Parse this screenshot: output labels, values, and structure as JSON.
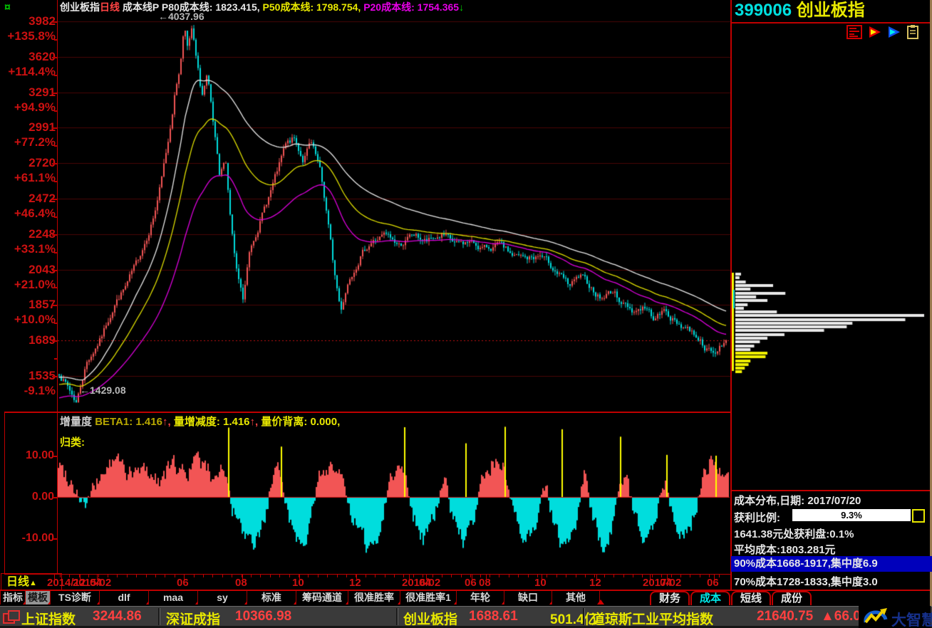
{
  "header": {
    "window_icon": "¤",
    "symbol": "创业板指",
    "period": "日线",
    "indicator": "成本线P",
    "p80_label": "P80成本线:",
    "p80_value": "1823.415,",
    "p50_label": "P50成本线:",
    "p50_value": "1798.754,",
    "p20_label": "P20成本线:",
    "p20_value": "1754.365",
    "p20_arrow": "↓"
  },
  "right_panel": {
    "code": "399006",
    "name": "创业板指",
    "icons": [
      "f10-report-icon",
      "red-flag-icon",
      "blue-flag-icon",
      "clipboard-icon"
    ],
    "cost_info": {
      "title": "成本分布,日期: 2017/07/20",
      "profit_label": "获利比例:",
      "profit_value": "9.3%",
      "line_price": "1641.38元处获利盘:0.1%",
      "line_avg": "平均成本:1803.281元",
      "line_90": "90%成本1668-1917,集中度6.9",
      "line_70": "70%成本1728-1833,集中度3.0"
    }
  },
  "subchart": {
    "title": "增量度",
    "beta_label": "BETA1:",
    "beta_value": "1.416",
    "beta_arrow": "↑,",
    "vol_label": "量增减度:",
    "vol_value": "1.416",
    "vol_arrow": "↑,",
    "dev_label": "量价背离:",
    "dev_value": "0.000,",
    "category": "归类:",
    "axis_labels": [
      "10.00",
      "0.00",
      "-10.00"
    ]
  },
  "timeline": {
    "period": "日线",
    "period_arrow": "▲",
    "labels": [
      [
        66,
        "2014/12"
      ],
      [
        102,
        "2015/02"
      ],
      [
        126,
        "04"
      ],
      [
        248,
        "06"
      ],
      [
        330,
        "08"
      ],
      [
        410,
        "10"
      ],
      [
        490,
        "12"
      ],
      [
        564,
        "2016/02"
      ],
      [
        588,
        "04"
      ],
      [
        652,
        "06"
      ],
      [
        672,
        "08"
      ],
      [
        750,
        "10"
      ],
      [
        827,
        "12"
      ],
      [
        902,
        "2017/02"
      ],
      [
        926,
        "04"
      ],
      [
        992,
        "06"
      ]
    ]
  },
  "tabs": {
    "left": [
      {
        "label": "指标",
        "active": false
      },
      {
        "label": "模板",
        "active": true
      },
      {
        "label": "TS诊断",
        "active": false
      },
      {
        "label": "dlf",
        "active": false
      },
      {
        "label": "maa",
        "active": false
      },
      {
        "label": "sy",
        "active": false
      },
      {
        "label": "标准",
        "active": false
      },
      {
        "label": "筹码通道",
        "active": false
      },
      {
        "label": "很准胜率",
        "active": false
      },
      {
        "label": "很准胜率1",
        "active": false
      },
      {
        "label": "年轮",
        "active": false
      },
      {
        "label": "缺口",
        "active": false
      },
      {
        "label": "其他",
        "active": false
      }
    ],
    "right": [
      {
        "label": "财务",
        "active": false
      },
      {
        "label": "成本",
        "active": true
      },
      {
        "label": "短线",
        "active": false
      },
      {
        "label": "成份",
        "active": false
      }
    ]
  },
  "status_bar": {
    "items": [
      {
        "label": "上证指数",
        "value": "3244.86"
      },
      {
        "label": "深证成指",
        "value": "10366.98"
      },
      {
        "label": "创业板指",
        "value": "1688.61",
        "extra": "501.4亿"
      },
      {
        "label": "道琼斯工业平均指数",
        "value": "21640.75",
        "change": "▲66.0"
      }
    ],
    "logo_text": "大智慧"
  },
  "chart_data": {
    "type": "candlestick",
    "title": "创业板指 日线 成本线P",
    "main": {
      "yscale": "log",
      "ylim": [
        1429,
        4038
      ],
      "levels": [
        [
          3982,
          "+135.8%"
        ],
        [
          3620,
          "+114.4%"
        ],
        [
          3291,
          "+94.9%"
        ],
        [
          2991,
          "+77.2%"
        ],
        [
          2720,
          "+61.1%"
        ],
        [
          2472,
          "+46.4%"
        ],
        [
          2248,
          "+33.1%"
        ],
        [
          2043,
          "+21.0%"
        ],
        [
          1857,
          "+10.0%"
        ],
        [
          1689,
          ""
        ],
        [
          1535,
          "-9.1%"
        ]
      ],
      "ref_price": 1689,
      "high_annotation": "←4037.96",
      "low_annotation": "←1429.08",
      "last_close": 1689,
      "cost_lines": {
        "p80": 1823.415,
        "p50": 1798.754,
        "p20": 1754.365
      },
      "n_candles": 313,
      "seed": 7,
      "price_anchors": [
        [
          0,
          1550
        ],
        [
          0.015,
          1480
        ],
        [
          0.026,
          1429
        ],
        [
          0.041,
          1590
        ],
        [
          0.063,
          1700
        ],
        [
          0.084,
          1870
        ],
        [
          0.1,
          1950
        ],
        [
          0.116,
          2070
        ],
        [
          0.132,
          2240
        ],
        [
          0.143,
          2380
        ],
        [
          0.153,
          2580
        ],
        [
          0.164,
          2900
        ],
        [
          0.174,
          3300
        ],
        [
          0.182,
          3560
        ],
        [
          0.188,
          3990
        ],
        [
          0.193,
          3700
        ],
        [
          0.199,
          3900
        ],
        [
          0.206,
          3560
        ],
        [
          0.214,
          3250
        ],
        [
          0.222,
          3430
        ],
        [
          0.231,
          3000
        ],
        [
          0.241,
          2580
        ],
        [
          0.249,
          2780
        ],
        [
          0.256,
          2380
        ],
        [
          0.265,
          2040
        ],
        [
          0.276,
          1870
        ],
        [
          0.286,
          2150
        ],
        [
          0.297,
          2280
        ],
        [
          0.313,
          2470
        ],
        [
          0.329,
          2680
        ],
        [
          0.339,
          2840
        ],
        [
          0.352,
          2900
        ],
        [
          0.366,
          2740
        ],
        [
          0.377,
          2870
        ],
        [
          0.39,
          2680
        ],
        [
          0.401,
          2380
        ],
        [
          0.412,
          2040
        ],
        [
          0.422,
          1830
        ],
        [
          0.435,
          2000
        ],
        [
          0.451,
          2120
        ],
        [
          0.467,
          2200
        ],
        [
          0.489,
          2240
        ],
        [
          0.51,
          2180
        ],
        [
          0.531,
          2240
        ],
        [
          0.552,
          2200
        ],
        [
          0.574,
          2240
        ],
        [
          0.595,
          2180
        ],
        [
          0.616,
          2200
        ],
        [
          0.637,
          2160
        ],
        [
          0.659,
          2180
        ],
        [
          0.68,
          2120
        ],
        [
          0.701,
          2100
        ],
        [
          0.722,
          2120
        ],
        [
          0.744,
          2040
        ],
        [
          0.765,
          1950
        ],
        [
          0.781,
          2000
        ],
        [
          0.797,
          1950
        ],
        [
          0.813,
          1890
        ],
        [
          0.829,
          1930
        ],
        [
          0.845,
          1870
        ],
        [
          0.861,
          1830
        ],
        [
          0.877,
          1850
        ],
        [
          0.893,
          1790
        ],
        [
          0.909,
          1830
        ],
        [
          0.925,
          1770
        ],
        [
          0.941,
          1750
        ],
        [
          0.957,
          1710
        ],
        [
          0.973,
          1645
        ],
        [
          0.984,
          1620
        ],
        [
          0.991,
          1670
        ],
        [
          1,
          1689
        ]
      ]
    },
    "oscillator": {
      "ylim": [
        -16,
        17
      ],
      "axis_ticks": [
        10,
        0,
        -10
      ],
      "anchors": [
        [
          0,
          8
        ],
        [
          0.02,
          4
        ],
        [
          0.04,
          -2
        ],
        [
          0.055,
          2
        ],
        [
          0.07,
          7
        ],
        [
          0.09,
          9
        ],
        [
          0.11,
          5
        ],
        [
          0.13,
          7
        ],
        [
          0.15,
          4
        ],
        [
          0.17,
          8
        ],
        [
          0.19,
          6
        ],
        [
          0.21,
          9
        ],
        [
          0.23,
          5
        ],
        [
          0.245,
          8
        ],
        [
          0.26,
          -3
        ],
        [
          0.275,
          -9
        ],
        [
          0.29,
          -13
        ],
        [
          0.305,
          -7
        ],
        [
          0.32,
          4
        ],
        [
          0.333,
          6
        ],
        [
          0.345,
          -5
        ],
        [
          0.36,
          -11
        ],
        [
          0.375,
          -7
        ],
        [
          0.39,
          5
        ],
        [
          0.405,
          8
        ],
        [
          0.42,
          6
        ],
        [
          0.435,
          -4
        ],
        [
          0.45,
          -9
        ],
        [
          0.465,
          -13
        ],
        [
          0.48,
          -8
        ],
        [
          0.495,
          5
        ],
        [
          0.517,
          8
        ],
        [
          0.53,
          -4
        ],
        [
          0.545,
          -10
        ],
        [
          0.56,
          -6
        ],
        [
          0.575,
          5
        ],
        [
          0.59,
          -5
        ],
        [
          0.605,
          -11
        ],
        [
          0.62,
          -7
        ],
        [
          0.635,
          6
        ],
        [
          0.65,
          9
        ],
        [
          0.665,
          7
        ],
        [
          0.68,
          -5
        ],
        [
          0.695,
          -12
        ],
        [
          0.71,
          -8
        ],
        [
          0.725,
          4
        ],
        [
          0.74,
          -6
        ],
        [
          0.755,
          -13
        ],
        [
          0.77,
          -9
        ],
        [
          0.785,
          5
        ],
        [
          0.8,
          -7
        ],
        [
          0.815,
          -12
        ],
        [
          0.83,
          -6
        ],
        [
          0.845,
          6
        ],
        [
          0.86,
          -4
        ],
        [
          0.875,
          -9
        ],
        [
          0.89,
          -5
        ],
        [
          0.905,
          4
        ],
        [
          0.92,
          -6
        ],
        [
          0.935,
          -10
        ],
        [
          0.95,
          -4
        ],
        [
          0.962,
          6
        ],
        [
          0.975,
          9
        ],
        [
          0.99,
          7
        ],
        [
          1,
          4
        ]
      ],
      "spikes": [
        [
          0.254,
          16.8
        ],
        [
          0.333,
          12.2
        ],
        [
          0.517,
          16.9
        ],
        [
          0.609,
          13
        ],
        [
          0.667,
          17
        ],
        [
          0.752,
          16.4
        ],
        [
          0.839,
          14.6
        ],
        [
          0.908,
          10.2
        ],
        [
          0.982,
          10
        ]
      ]
    },
    "distribution": {
      "bars": [
        [
          383,
          0.03,
          0
        ],
        [
          388,
          0.022,
          0
        ],
        [
          394,
          0.055,
          0
        ],
        [
          399,
          0.2,
          0
        ],
        [
          404,
          0.08,
          0
        ],
        [
          410,
          0.265,
          0
        ],
        [
          415,
          0.11,
          0
        ],
        [
          420,
          0.17,
          0
        ],
        [
          426,
          0.065,
          0
        ],
        [
          431,
          0.045,
          0
        ],
        [
          436,
          0.22,
          0
        ],
        [
          441,
          1.0,
          0
        ],
        [
          447,
          0.9,
          0
        ],
        [
          452,
          0.62,
          0
        ],
        [
          457,
          0.59,
          0
        ],
        [
          462,
          0.47,
          0
        ],
        [
          468,
          0.26,
          0
        ],
        [
          473,
          0.17,
          0
        ],
        [
          478,
          0.13,
          0
        ],
        [
          484,
          0.1,
          0
        ],
        [
          489,
          0.08,
          0
        ],
        [
          494,
          0.17,
          1
        ],
        [
          499,
          0.16,
          1
        ],
        [
          505,
          0.08,
          1
        ],
        [
          510,
          0.07,
          1
        ],
        [
          515,
          0.05,
          1
        ],
        [
          520,
          0.035,
          1
        ]
      ]
    }
  },
  "colors": {
    "axis_red": "#cc1111",
    "grid_red": "#4a0606",
    "border_red": "#c00000",
    "dotted_red": "#c01010",
    "candle_up": "#f25555",
    "candle_down": "#00dddd",
    "line_p80": "#e8e8e8",
    "line_p50": "#dede00",
    "line_p20": "#dd00dd",
    "bar_pos": "#f25555",
    "bar_neg": "#00dddd",
    "spike": "#ffff00",
    "hist_white": "#e8e8e8",
    "hist_yellow": "#f0f000",
    "highlight_blue": "#0000bb",
    "yellow": "#e8e800",
    "cyan": "#00e0e0"
  }
}
